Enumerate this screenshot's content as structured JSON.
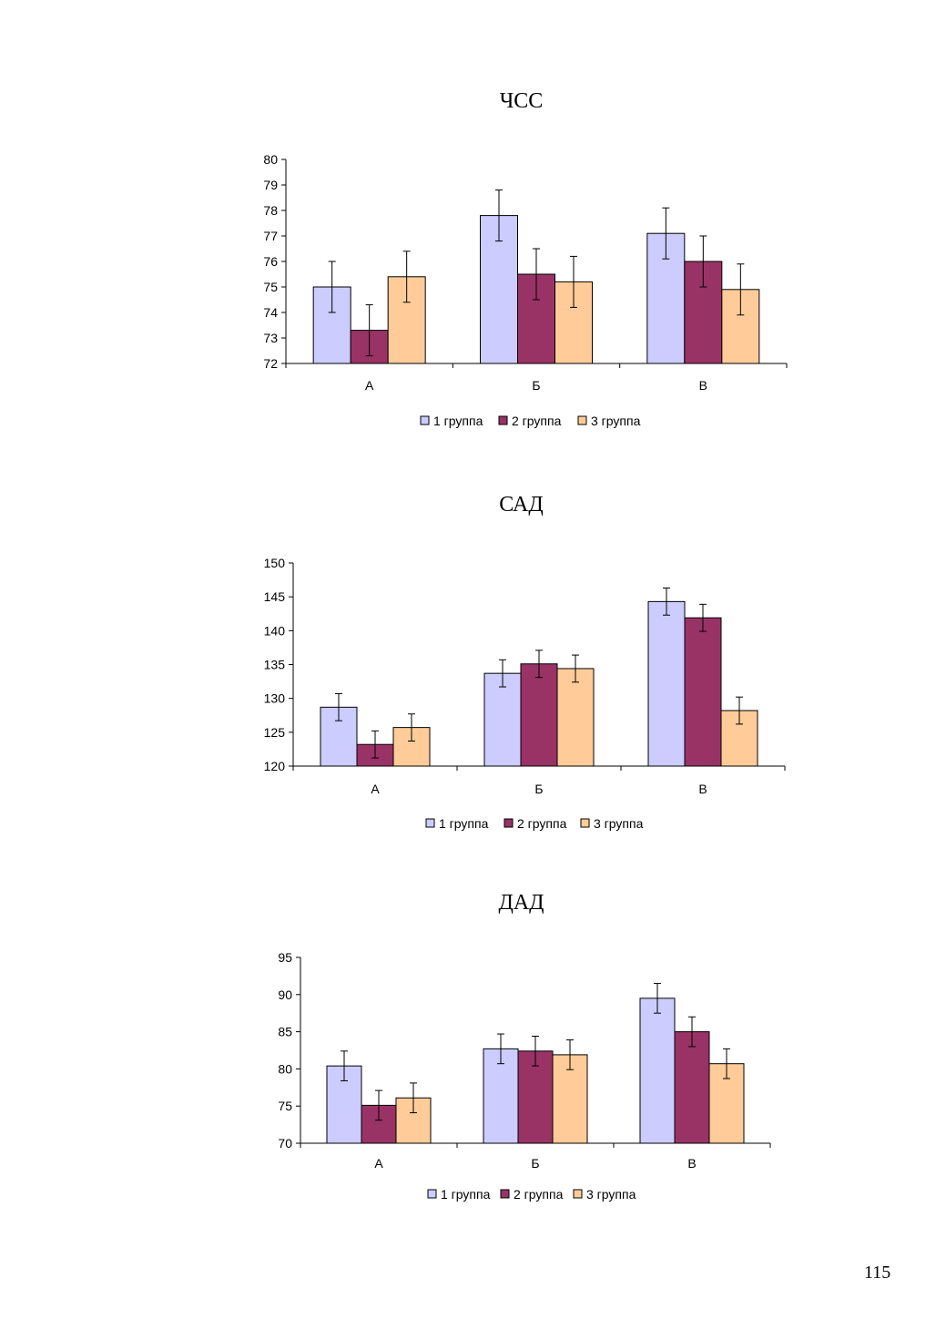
{
  "chart_data": [
    {
      "type": "bar",
      "title": "ЧСС",
      "categories": [
        "А",
        "Б",
        "В"
      ],
      "series": [
        {
          "name": "1 группа",
          "values": [
            75.0,
            77.8,
            77.1
          ],
          "errors": [
            1.0,
            1.0,
            1.0
          ]
        },
        {
          "name": "2 группа",
          "values": [
            73.3,
            75.5,
            76.0
          ],
          "errors": [
            1.0,
            1.0,
            1.0
          ]
        },
        {
          "name": "3 группа",
          "values": [
            75.4,
            75.2,
            74.9
          ],
          "errors": [
            1.0,
            1.0,
            1.0
          ]
        }
      ],
      "ylim": [
        72,
        80
      ],
      "yticks": [
        "72",
        "73",
        "74",
        "75",
        "76",
        "77",
        "78",
        "79",
        "80"
      ],
      "legend_position": "bottom",
      "grid": false
    },
    {
      "type": "bar",
      "title": "САД",
      "categories": [
        "А",
        "Б",
        "В"
      ],
      "series": [
        {
          "name": "1 группа",
          "values": [
            128.7,
            133.7,
            144.3
          ],
          "errors": [
            2.0,
            2.0,
            2.0
          ]
        },
        {
          "name": "2 группа",
          "values": [
            123.2,
            135.1,
            141.9
          ],
          "errors": [
            2.0,
            2.0,
            2.0
          ]
        },
        {
          "name": "3 группа",
          "values": [
            125.7,
            134.4,
            128.2
          ],
          "errors": [
            2.0,
            2.0,
            2.0
          ]
        }
      ],
      "ylim": [
        120,
        150
      ],
      "yticks": [
        "120",
        "125",
        "130",
        "135",
        "140",
        "145",
        "150"
      ],
      "legend_position": "bottom",
      "grid": false
    },
    {
      "type": "bar",
      "title": "ДАД",
      "categories": [
        "А",
        "Б",
        "В"
      ],
      "series": [
        {
          "name": "1 группа",
          "values": [
            80.4,
            82.7,
            89.5
          ],
          "errors": [
            2.0,
            2.0,
            2.0
          ]
        },
        {
          "name": "2 группа",
          "values": [
            75.1,
            82.4,
            85.0
          ],
          "errors": [
            2.0,
            2.0,
            2.0
          ]
        },
        {
          "name": "3 группа",
          "values": [
            76.1,
            81.9,
            80.7
          ],
          "errors": [
            2.0,
            2.0,
            2.0
          ]
        }
      ],
      "ylim": [
        70,
        95
      ],
      "yticks": [
        "70",
        "75",
        "80",
        "85",
        "90",
        "95"
      ],
      "legend_position": "bottom",
      "grid": false
    }
  ],
  "colors": {
    "1 группа": "#ccccff",
    "2 группа": "#993366",
    "3 группа": "#ffcc99"
  },
  "page_number": "115"
}
